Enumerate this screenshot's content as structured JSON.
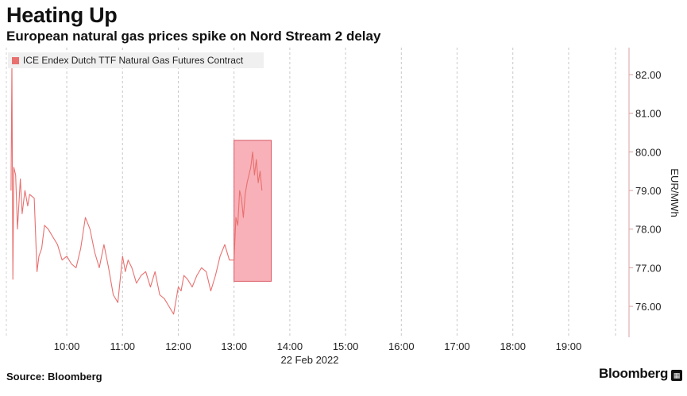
{
  "header": {
    "title": "Heating Up",
    "subtitle": "European natural gas prices spike on Nord Stream 2 delay"
  },
  "footer": {
    "source": "Source: Bloomberg",
    "brand": "Bloomberg",
    "brand_icon": "bloomberg-logo-icon"
  },
  "chart_data": {
    "type": "line",
    "title": "",
    "legend": [
      "ICE Endex Dutch TTF Natural Gas Futures Contract"
    ],
    "legend_placement": "top-left",
    "ylabel": "EUR/MWh",
    "y_axis_side": "right",
    "xlabel": "22 Feb 2022",
    "ylim": [
      75.2,
      82.7
    ],
    "yticks": [
      76.0,
      77.0,
      78.0,
      79.0,
      80.0,
      81.0,
      82.0
    ],
    "ytick_labels": [
      "76.00",
      "77.00",
      "78.00",
      "79.00",
      "80.00",
      "81.00",
      "82.00"
    ],
    "xlim": [
      "08:55",
      "20:05"
    ],
    "xticks": [
      "10:00",
      "11:00",
      "12:00",
      "13:00",
      "14:00",
      "15:00",
      "16:00",
      "17:00",
      "18:00",
      "19:00"
    ],
    "grid": "vertical dashed",
    "series": [
      {
        "name": "ICE Endex Dutch TTF Natural Gas Futures Contract",
        "color": "#e8706f",
        "x": [
          "09:00",
          "09:01",
          "09:02",
          "09:03",
          "09:05",
          "09:07",
          "09:10",
          "09:12",
          "09:15",
          "09:18",
          "09:20",
          "09:25",
          "09:28",
          "09:30",
          "09:33",
          "09:36",
          "09:40",
          "09:45",
          "09:50",
          "09:55",
          "10:00",
          "10:05",
          "10:10",
          "10:15",
          "10:20",
          "10:25",
          "10:30",
          "10:35",
          "10:40",
          "10:45",
          "10:50",
          "10:55",
          "11:00",
          "11:03",
          "11:06",
          "11:10",
          "11:15",
          "11:20",
          "11:25",
          "11:30",
          "11:35",
          "11:40",
          "11:45",
          "11:50",
          "11:55",
          "12:00",
          "12:03",
          "12:06",
          "12:10",
          "12:15",
          "12:20",
          "12:25",
          "12:30",
          "12:35",
          "12:40",
          "12:45",
          "12:50",
          "12:55",
          "13:00",
          "13:02",
          "13:04",
          "13:06",
          "13:08",
          "13:10",
          "13:12",
          "13:14",
          "13:16",
          "13:18",
          "13:20",
          "13:22",
          "13:24",
          "13:26",
          "13:28",
          "13:30"
        ],
        "values": [
          79.0,
          82.3,
          76.7,
          79.6,
          79.4,
          78.0,
          79.3,
          78.4,
          79.0,
          78.6,
          78.9,
          78.8,
          76.9,
          77.3,
          77.5,
          78.1,
          78.0,
          77.8,
          77.6,
          77.2,
          77.3,
          77.1,
          77.0,
          77.5,
          78.3,
          78.0,
          77.4,
          77.0,
          77.6,
          77.0,
          76.3,
          76.1,
          77.3,
          76.9,
          77.2,
          77.0,
          76.6,
          76.8,
          76.9,
          76.5,
          76.9,
          76.3,
          76.2,
          76.0,
          75.8,
          76.5,
          76.4,
          76.8,
          76.7,
          76.5,
          76.8,
          77.0,
          76.9,
          76.4,
          76.8,
          77.3,
          77.6,
          77.2,
          77.2,
          78.3,
          78.1,
          79.0,
          78.8,
          78.3,
          78.9,
          79.2,
          79.4,
          79.6,
          80.0,
          79.4,
          79.8,
          79.2,
          79.5,
          79.0
        ]
      }
    ],
    "annotations": [
      {
        "type": "highlight-box",
        "x_range": [
          "13:00",
          "13:40"
        ],
        "y_range": [
          76.65,
          80.3
        ],
        "color": "#f7a3ab"
      }
    ]
  }
}
